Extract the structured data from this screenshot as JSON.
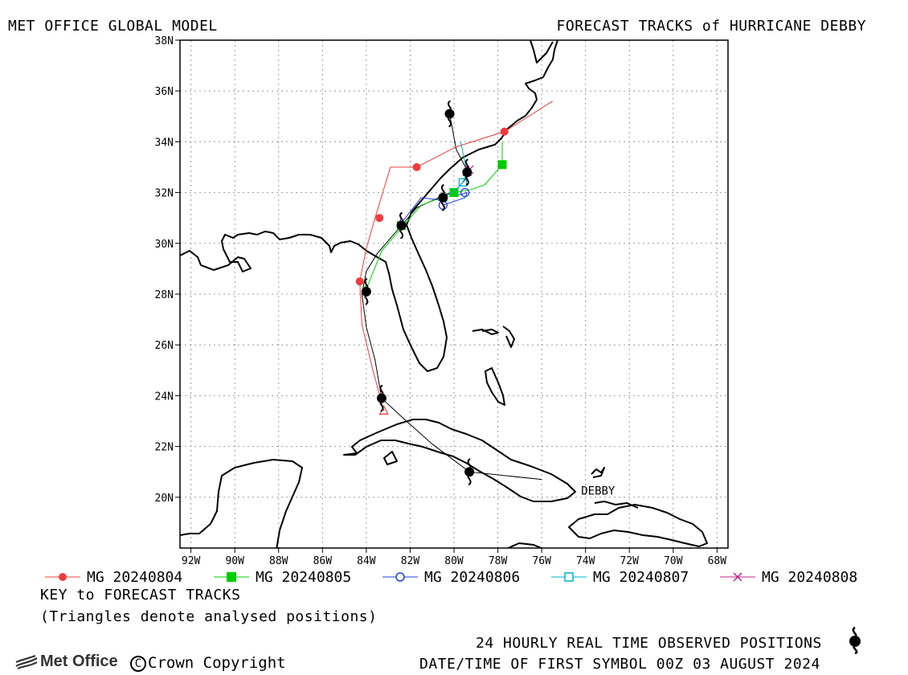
{
  "header": {
    "title_left": "MET OFFICE GLOBAL MODEL",
    "title_right": "FORECAST TRACKS of HURRICANE DEBBY"
  },
  "map": {
    "lon_range": [
      -92.5,
      -67.5
    ],
    "lat_range": [
      18,
      38
    ],
    "lat_ticks": [
      "38N",
      "36N",
      "34N",
      "32N",
      "30N",
      "28N",
      "26N",
      "24N",
      "22N",
      "20N"
    ],
    "lat_tick_values": [
      38,
      36,
      34,
      32,
      30,
      28,
      26,
      24,
      22,
      20
    ],
    "lon_ticks": [
      "92W",
      "90W",
      "88W",
      "86W",
      "84W",
      "82W",
      "80W",
      "78W",
      "76W",
      "74W",
      "72W",
      "70W",
      "68W"
    ],
    "lon_tick_values": [
      -92,
      -90,
      -88,
      -86,
      -84,
      -82,
      -80,
      -78,
      -76,
      -74,
      -72,
      -70,
      -68
    ],
    "grid": true,
    "storm_label": "DEBBY",
    "storm_label_pos": [
      -74.2,
      20.1
    ],
    "observed_track": [
      [
        -76,
        20.7
      ],
      [
        -79.3,
        21.0
      ],
      [
        -81,
        22.1
      ],
      [
        -82.3,
        23.1
      ],
      [
        -83.3,
        23.9
      ],
      [
        -83.6,
        25.4
      ],
      [
        -84.0,
        26.7
      ],
      [
        -84.2,
        28.0
      ],
      [
        -84.0,
        28.9
      ],
      [
        -83.5,
        29.6
      ],
      [
        -82.4,
        30.7
      ],
      [
        -81.7,
        31.4
      ],
      [
        -80.7,
        31.8
      ],
      [
        -79.9,
        32.1
      ],
      [
        -79.3,
        32.7
      ],
      [
        -79.9,
        33.7
      ],
      [
        -80.2,
        35.1
      ]
    ],
    "observed_positions": [
      [
        -79.3,
        21.0
      ],
      [
        -83.3,
        23.9
      ],
      [
        -84.0,
        28.1
      ],
      [
        -82.4,
        30.7
      ],
      [
        -80.5,
        31.8
      ],
      [
        -79.4,
        32.8
      ],
      [
        -80.2,
        35.1
      ]
    ],
    "colors": {
      "land": "#000000",
      "grid": "#999999",
      "MG20240804": "#f03c3c",
      "MG20240805": "#00cc00",
      "MG20240806": "#2040e0",
      "MG20240807": "#00b4c8",
      "MG20240808": "#c0208a"
    }
  },
  "forecasts": [
    {
      "name": "MG 20240804",
      "color": "#f03c3c",
      "marker": "filled-circle",
      "track": [
        [
          -83.2,
          23.4
        ],
        [
          -83.7,
          25.0
        ],
        [
          -84.2,
          26.8
        ],
        [
          -84.3,
          28.5
        ],
        [
          -84.0,
          29.8
        ],
        [
          -83.6,
          31.0
        ],
        [
          -82.9,
          33.0
        ],
        [
          -81.7,
          33.0
        ],
        [
          -79.9,
          33.8
        ],
        [
          -77.7,
          34.4
        ],
        [
          -75.5,
          35.6
        ]
      ],
      "points": [
        [
          -84.3,
          28.5
        ],
        [
          -83.4,
          31.0
        ],
        [
          -81.7,
          33.0
        ],
        [
          -77.7,
          34.4
        ]
      ]
    },
    {
      "name": "MG 20240805",
      "color": "#00cc00",
      "marker": "filled-square",
      "track": [
        [
          -84.0,
          28.2
        ],
        [
          -83.3,
          29.7
        ],
        [
          -82.3,
          30.7
        ],
        [
          -81.5,
          31.5
        ],
        [
          -80.0,
          32.0
        ],
        [
          -79.3,
          32.1
        ],
        [
          -78.6,
          32.3
        ],
        [
          -77.8,
          33.1
        ],
        [
          -77.8,
          34.0
        ]
      ],
      "points": [
        [
          -82.4,
          30.7
        ],
        [
          -80.0,
          32.0
        ],
        [
          -77.8,
          33.1
        ]
      ]
    },
    {
      "name": "MG 20240806",
      "color": "#2040e0",
      "marker": "open-circle",
      "track": [
        [
          -82.4,
          30.8
        ],
        [
          -81.5,
          31.8
        ],
        [
          -80.6,
          31.7
        ],
        [
          -80.5,
          31.5
        ],
        [
          -79.5,
          31.8
        ],
        [
          -79.4,
          32.0
        ],
        [
          -79.8,
          31.9
        ]
      ],
      "points": [
        [
          -80.5,
          31.5
        ],
        [
          -79.5,
          32.0
        ]
      ]
    },
    {
      "name": "MG 20240807",
      "color": "#00b4c8",
      "marker": "open-square",
      "track": [
        [
          -80.5,
          31.8
        ],
        [
          -79.9,
          32.1
        ],
        [
          -79.6,
          32.4
        ],
        [
          -79.4,
          32.8
        ],
        [
          -79.7,
          34.0
        ]
      ],
      "points": [
        [
          -79.6,
          32.4
        ]
      ]
    },
    {
      "name": "MG 20240808",
      "color": "#c0208a",
      "marker": "x",
      "track": [
        [
          -79.4,
          32.8
        ],
        [
          -79.3,
          33.0
        ]
      ],
      "points": [
        [
          -79.3,
          32.9
        ]
      ]
    }
  ],
  "legend": {
    "key_title": "KEY to FORECAST TRACKS",
    "key_note": "(Triangles denote analysed positions)"
  },
  "footer": {
    "observed_label": "24 HOURLY REAL TIME OBSERVED POSITIONS",
    "first_symbol": "DATE/TIME OF FIRST SYMBOL 00Z 03 AUGUST 2024",
    "logo_text": "Met Office",
    "copyright": "Crown Copyright",
    "copyright_symbol": "C",
    "hurricane_icon": "hurricane-symbol-icon"
  }
}
